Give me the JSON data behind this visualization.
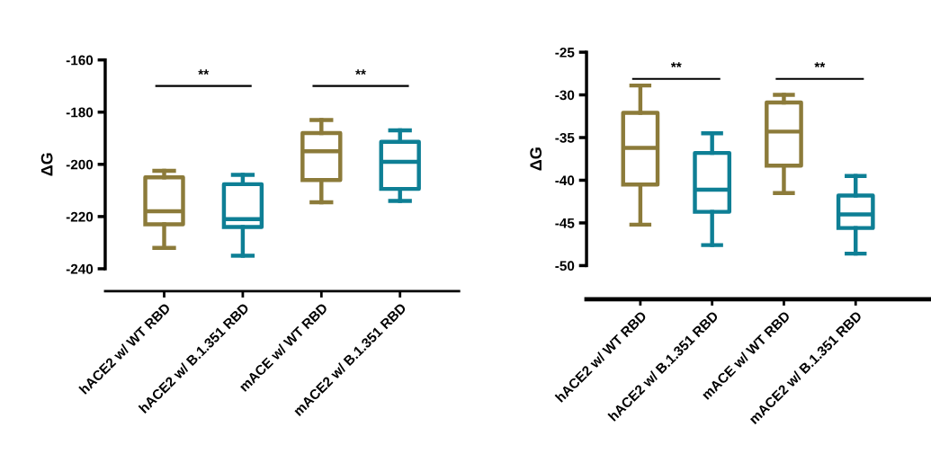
{
  "chart_data": [
    {
      "type": "box",
      "ylabel": "ΔG",
      "categories": [
        "hACE2 w/ WT RBD",
        "hACE2 w/ B.1.351 RBD",
        "mACE w/ WT RBD",
        "mACE2 w/ B.1.351 RBD"
      ],
      "colors": [
        "#8c7b3a",
        "#0e7f95",
        "#8c7b3a",
        "#0e7f95"
      ],
      "boxes": [
        {
          "low": -232,
          "q1": -223,
          "median": -218,
          "q3": -205,
          "high": -202.5
        },
        {
          "low": -235,
          "q1": -224,
          "median": -221,
          "q3": -207.6,
          "high": -204
        },
        {
          "low": -214.5,
          "q1": -206,
          "median": -195,
          "q3": -188,
          "high": -183
        },
        {
          "low": -214,
          "q1": -209.4,
          "median": -199,
          "q3": -191.4,
          "high": -187
        }
      ],
      "ylim": [
        -240,
        -160
      ],
      "yticks": [
        -240,
        -220,
        -200,
        -180,
        -160
      ],
      "grid": false,
      "annotations": [
        "**",
        "**"
      ]
    },
    {
      "type": "box",
      "ylabel": "ΔG",
      "categories": [
        "hACE2 w/ WT RBD",
        "hACE2 w/ B.1.351 RBD",
        "mACE w/ WT RBD",
        "mACE2 w/ B.1.351 RBD"
      ],
      "colors": [
        "#8c7b3a",
        "#0e7f95",
        "#8c7b3a",
        "#0e7f95"
      ],
      "boxes": [
        {
          "low": -45.2,
          "q1": -40.5,
          "median": -36.2,
          "q3": -32.1,
          "high": -28.9
        },
        {
          "low": -47.6,
          "q1": -43.7,
          "median": -41.1,
          "q3": -36.8,
          "high": -34.5
        },
        {
          "low": -41.5,
          "q1": -38.3,
          "median": -34.3,
          "q3": -30.9,
          "high": -30
        },
        {
          "low": -48.6,
          "q1": -45.6,
          "median": -44,
          "q3": -41.8,
          "high": -39.5
        }
      ],
      "ylim": [
        -50,
        -25
      ],
      "yticks": [
        -50,
        -45,
        -40,
        -35,
        -30,
        -25
      ],
      "grid": false,
      "annotations": [
        "**",
        "**"
      ]
    }
  ]
}
